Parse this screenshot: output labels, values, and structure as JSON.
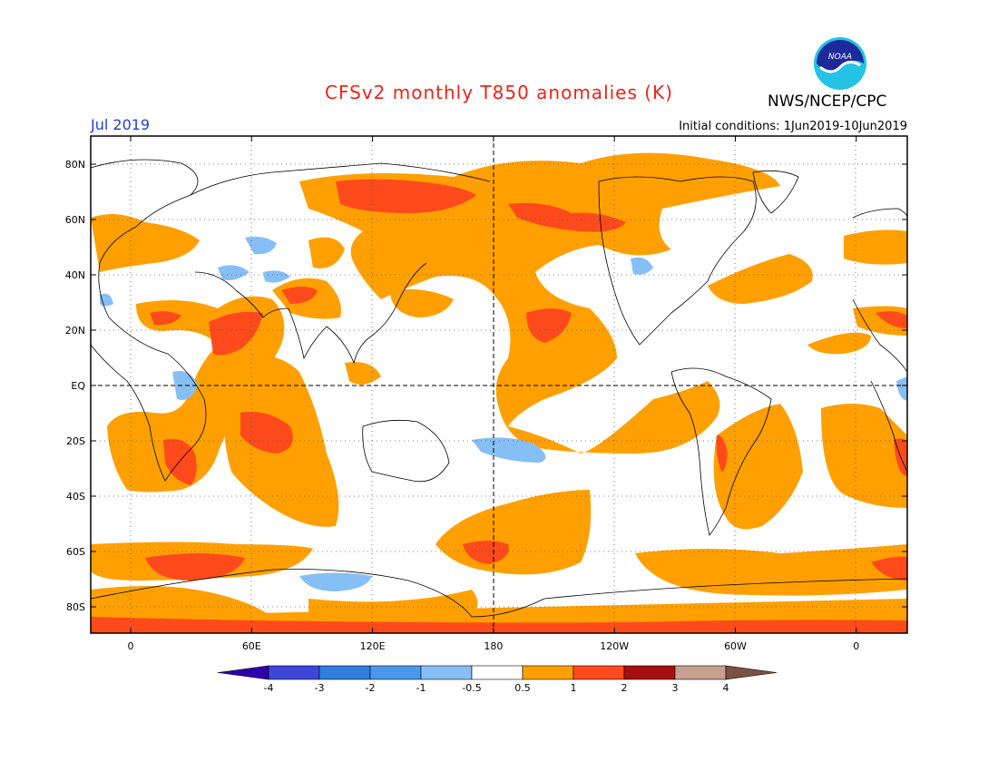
{
  "title": "CFSv2 monthly T850 anomalies (K)",
  "agency": "NWS/NCEP/CPC",
  "logo_text": "NOAA",
  "period": "Jul 2019",
  "initial_conditions": "Initial conditions: 1Jun2019-10Jun2019",
  "lat_labels": [
    "80N",
    "60N",
    "40N",
    "20N",
    "EQ",
    "20S",
    "40S",
    "60S",
    "80S"
  ],
  "lon_labels": [
    "0",
    "60E",
    "120E",
    "180",
    "120W",
    "60W",
    "0"
  ],
  "colorbar": {
    "ticks": [
      "-4",
      "-3",
      "-2",
      "-1",
      "-0.5",
      "0.5",
      "1",
      "2",
      "3",
      "4"
    ],
    "colors": [
      "#2d00a8",
      "#3c46d8",
      "#2f7ee0",
      "#4a97ef",
      "#86bff5",
      "#ffffff",
      "#ffa000",
      "#ff4b1c",
      "#a50f0f",
      "#c9a090",
      "#7a5242"
    ]
  }
}
